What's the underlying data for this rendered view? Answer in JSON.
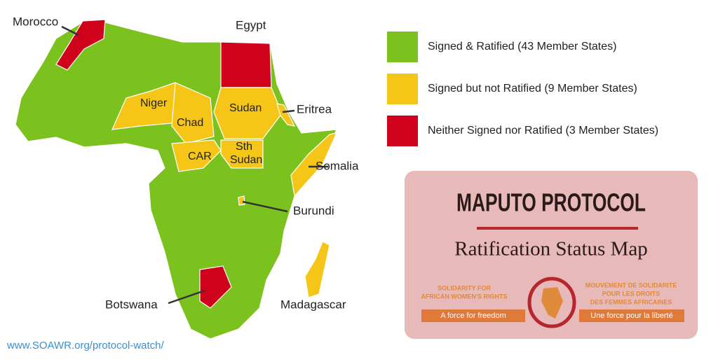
{
  "map": {
    "labels": [
      {
        "text": "Morocco"
      },
      {
        "text": "Egypt"
      },
      {
        "text": "Niger"
      },
      {
        "text": "Chad"
      },
      {
        "text": "Sudan"
      },
      {
        "text": "Eritrea"
      },
      {
        "text": "CAR"
      },
      {
        "lines": [
          "Sth",
          "Sudan"
        ]
      },
      {
        "text": "Somalia"
      },
      {
        "text": "Burundi"
      },
      {
        "text": "Botswana"
      },
      {
        "text": "Madagascar"
      }
    ]
  },
  "legend": [
    {
      "label": "Signed & Ratified (43 Member States)",
      "color": "#7cc21e"
    },
    {
      "label": "Signed but not Ratified (9 Member States)",
      "color": "#f5c518"
    },
    {
      "label": "Neither Signed nor Ratified (3 Member States)",
      "color": "#d0021b"
    }
  ],
  "title_box": {
    "title": "MAPUTO PROTOCOL",
    "subtitle": "Ratification Status Map",
    "logo_left": [
      "SOLIDARITY FOR",
      "AFRICAN WOMEN'S RIGHTS"
    ],
    "logo_left_tag": "A force for freedom",
    "logo_right": [
      "MOUVEMENT DE SOLIDARITE",
      "POUR LES DROITS",
      "DES FEMMES AFRICAINES"
    ],
    "logo_right_tag": "Une force pour la liberté"
  },
  "url": "www.SOAWR.org/protocol-watch/"
}
